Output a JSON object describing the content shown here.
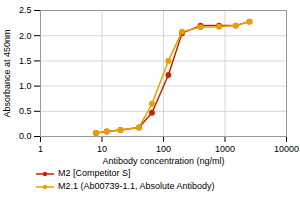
{
  "chart_data": {
    "type": "line",
    "title": "",
    "xlabel": "Antibody concentration (ng/ml)",
    "ylabel": "Absorbance at 450nm",
    "x": [
      8,
      12,
      20,
      40,
      65,
      120,
      200,
      400,
      800,
      1500,
      2500
    ],
    "series": [
      {
        "name": "M2 [Competitor S]",
        "color": "#cc2200",
        "marker": "circle",
        "values": [
          0.07,
          0.1,
          0.13,
          0.18,
          0.47,
          1.22,
          2.05,
          2.2,
          2.2,
          2.2,
          2.28
        ]
      },
      {
        "name": "M2.1 (Ab00739-1.1, Absolute Antibody)",
        "color": "#e8a000",
        "marker": "circle",
        "values": [
          0.07,
          0.1,
          0.13,
          0.18,
          0.65,
          1.5,
          2.08,
          2.17,
          2.18,
          2.2,
          2.28
        ]
      }
    ],
    "log": "x",
    "xlim": [
      1,
      10000
    ],
    "xticks": [
      1,
      10,
      100,
      1000,
      10000
    ],
    "ylim": [
      0,
      2.5
    ],
    "yticks": [
      {
        "value": 0,
        "label": "0.0"
      },
      {
        "value": 0.5,
        "label": "0.5"
      },
      {
        "value": 1,
        "label": "1.0"
      },
      {
        "value": 1.5,
        "label": "1.5"
      },
      {
        "value": 2,
        "label": "2.0"
      },
      {
        "value": 2.5,
        "label": "2.5"
      }
    ],
    "grid": true,
    "legend": "bottom"
  }
}
